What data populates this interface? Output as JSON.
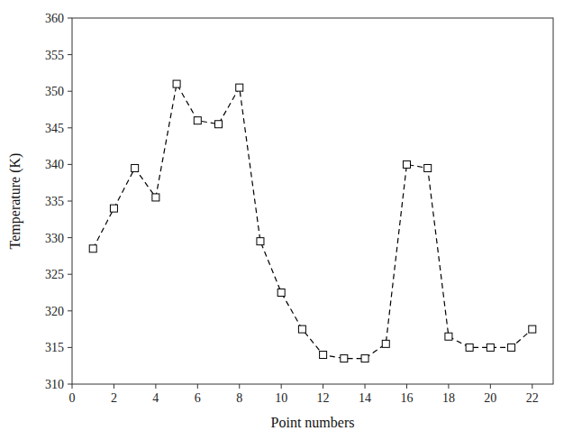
{
  "chart_data": {
    "type": "line",
    "xlabel": "Point numbers",
    "ylabel": "Temperature (K)",
    "x": [
      1,
      2,
      3,
      4,
      5,
      6,
      7,
      8,
      9,
      10,
      11,
      12,
      13,
      14,
      15,
      16,
      17,
      18,
      19,
      20,
      21,
      22
    ],
    "values": [
      328.5,
      334.0,
      339.5,
      335.5,
      351.0,
      346.0,
      345.5,
      350.5,
      329.5,
      322.5,
      317.5,
      314.0,
      313.5,
      313.5,
      315.5,
      340.0,
      339.5,
      316.5,
      315.0,
      315.0,
      315.0,
      317.5
    ],
    "xlim": [
      0,
      23
    ],
    "ylim": [
      310,
      360
    ],
    "xticks": [
      0,
      2,
      4,
      6,
      8,
      10,
      12,
      14,
      16,
      18,
      20,
      22
    ],
    "yticks": [
      310,
      315,
      320,
      325,
      330,
      335,
      340,
      345,
      350,
      355,
      360
    ],
    "color": "#000000",
    "marker": "square",
    "line_style": "dashed",
    "grid": false
  }
}
